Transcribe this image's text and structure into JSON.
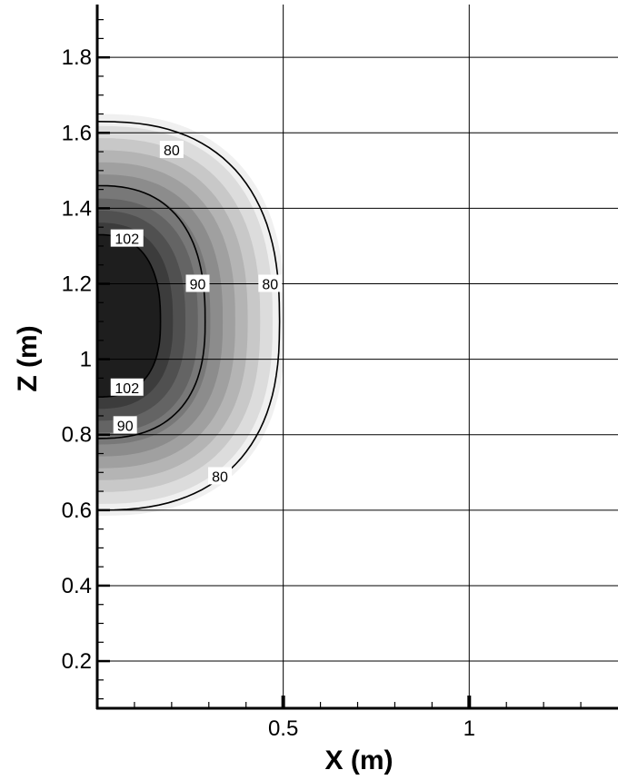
{
  "chart_data": {
    "type": "contour",
    "title": "",
    "xlabel": "X (m)",
    "ylabel": "Z (m)",
    "xlim": [
      0.0,
      1.4
    ],
    "ylim": [
      0.075,
      1.94
    ],
    "x_ticks": [
      {
        "value": 0.5,
        "label": "0.5"
      },
      {
        "value": 1.0,
        "label": "1"
      }
    ],
    "y_ticks": [
      {
        "value": 0.2,
        "label": "0.2"
      },
      {
        "value": 0.4,
        "label": "0.4"
      },
      {
        "value": 0.6,
        "label": "0.6"
      },
      {
        "value": 0.8,
        "label": "0.8"
      },
      {
        "value": 1.0,
        "label": "1"
      },
      {
        "value": 1.2,
        "label": "1.2"
      },
      {
        "value": 1.4,
        "label": "1.4"
      },
      {
        "value": 1.6,
        "label": "1.6"
      },
      {
        "value": 1.8,
        "label": "1.8"
      }
    ],
    "grid": true,
    "fill_colors": [
      "#f0f0f0",
      "#dcdcdc",
      "#c8c8c8",
      "#b4b4b4",
      "#a0a0a0",
      "#8c8c8c",
      "#787878",
      "#646464",
      "#505050",
      "#3c3c3c",
      "#1e1e1e"
    ],
    "center": {
      "x": 0.0,
      "z": 1.1
    },
    "contour_lines": [
      {
        "level": 80,
        "rx": 0.49,
        "rz_up": 0.53,
        "rz_down": 0.5
      },
      {
        "level": 90,
        "rx": 0.29,
        "rz_up": 0.36,
        "rz_down": 0.31
      },
      {
        "level": 102,
        "rx": 0.17,
        "rz_up": 0.23,
        "rz_down": 0.2
      }
    ],
    "contour_labels": [
      {
        "text": "80",
        "x": 0.2,
        "z": 1.555
      },
      {
        "text": "80",
        "x": 0.465,
        "z": 1.2
      },
      {
        "text": "80",
        "x": 0.33,
        "z": 0.69
      },
      {
        "text": "90",
        "x": 0.27,
        "z": 1.2
      },
      {
        "text": "90",
        "x": 0.075,
        "z": 0.825
      },
      {
        "text": "102",
        "x": 0.08,
        "z": 1.32
      },
      {
        "text": "102",
        "x": 0.08,
        "z": 0.925
      }
    ]
  }
}
